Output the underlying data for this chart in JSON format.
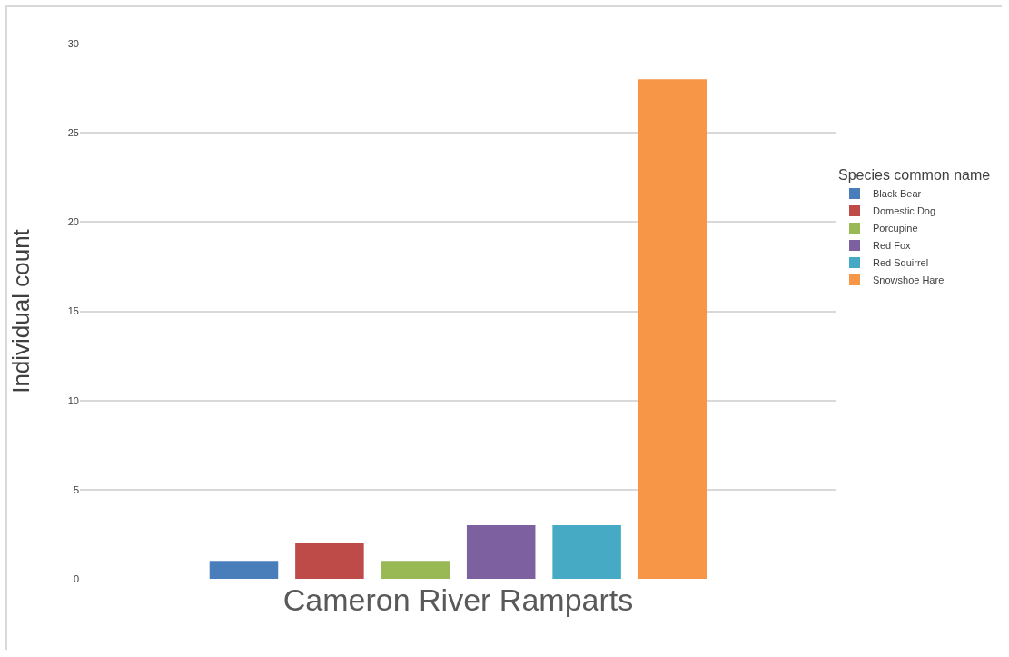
{
  "chart_data": {
    "type": "bar",
    "categories": [
      "Cameron River Ramparts"
    ],
    "ylabel": "Individual count",
    "legend_title": "Species common name",
    "legend": "right",
    "grid": "y",
    "ylim": [
      0,
      30
    ],
    "yticks": [
      0,
      5,
      10,
      15,
      20,
      25,
      30
    ],
    "series": [
      {
        "name": "Black Bear",
        "color": "#4a7ebb",
        "values": [
          1
        ]
      },
      {
        "name": "Domestic Dog",
        "color": "#be4b48",
        "values": [
          2
        ]
      },
      {
        "name": "Porcupine",
        "color": "#98b954",
        "values": [
          1
        ]
      },
      {
        "name": "Red Fox",
        "color": "#7d60a0",
        "values": [
          3
        ]
      },
      {
        "name": "Red Squirrel",
        "color": "#46aac5",
        "values": [
          3
        ]
      },
      {
        "name": "Snowshoe Hare",
        "color": "#f79646",
        "values": [
          28
        ]
      }
    ]
  }
}
